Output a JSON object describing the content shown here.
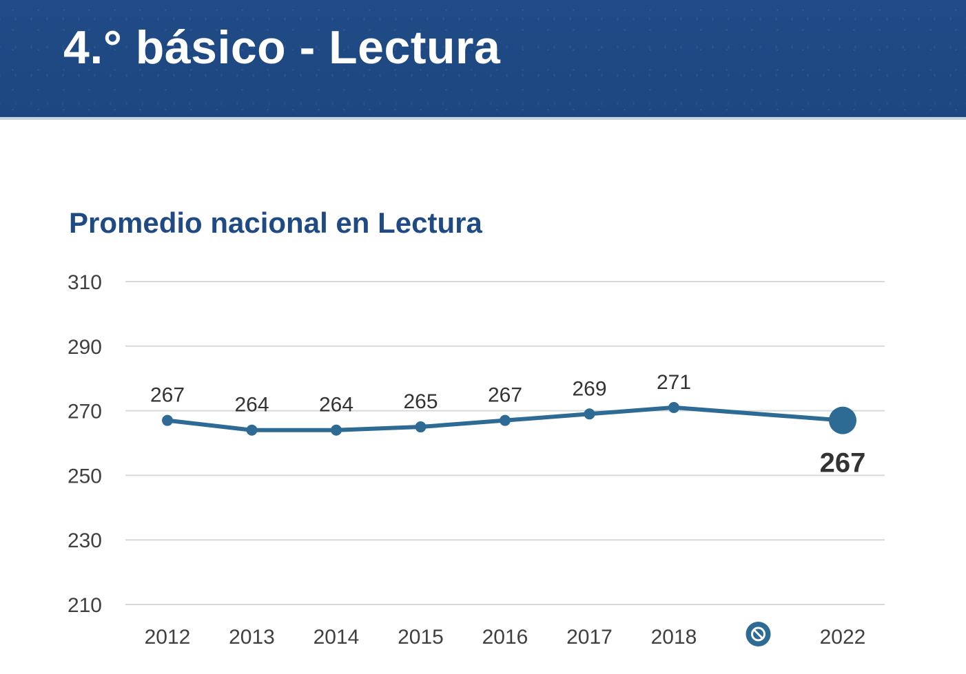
{
  "header": {
    "title": "4.° básico - Lectura"
  },
  "chart_data": {
    "type": "line",
    "title": "Promedio nacional en Lectura",
    "xlabel": "",
    "ylabel": "",
    "categories": [
      "2012",
      "2013",
      "2014",
      "2015",
      "2016",
      "2017",
      "2018",
      "2022"
    ],
    "series": [
      {
        "name": "Promedio nacional",
        "values": [
          267,
          264,
          264,
          265,
          267,
          269,
          271,
          267
        ],
        "labels": [
          "267",
          "264",
          "264",
          "265",
          "267",
          "269",
          "271",
          "267"
        ]
      }
    ],
    "gap_marker": {
      "between": [
        "2018",
        "2022"
      ],
      "icon": "no-measurement-icon"
    },
    "ylim": [
      210,
      310
    ],
    "yticks": [
      "210",
      "230",
      "250",
      "270",
      "290",
      "310"
    ],
    "grid": true,
    "highlight_last": true,
    "colors": {
      "line": "#2e6b94",
      "grid": "#d9d9d9",
      "title": "#1f4a84",
      "text": "#404040"
    }
  }
}
